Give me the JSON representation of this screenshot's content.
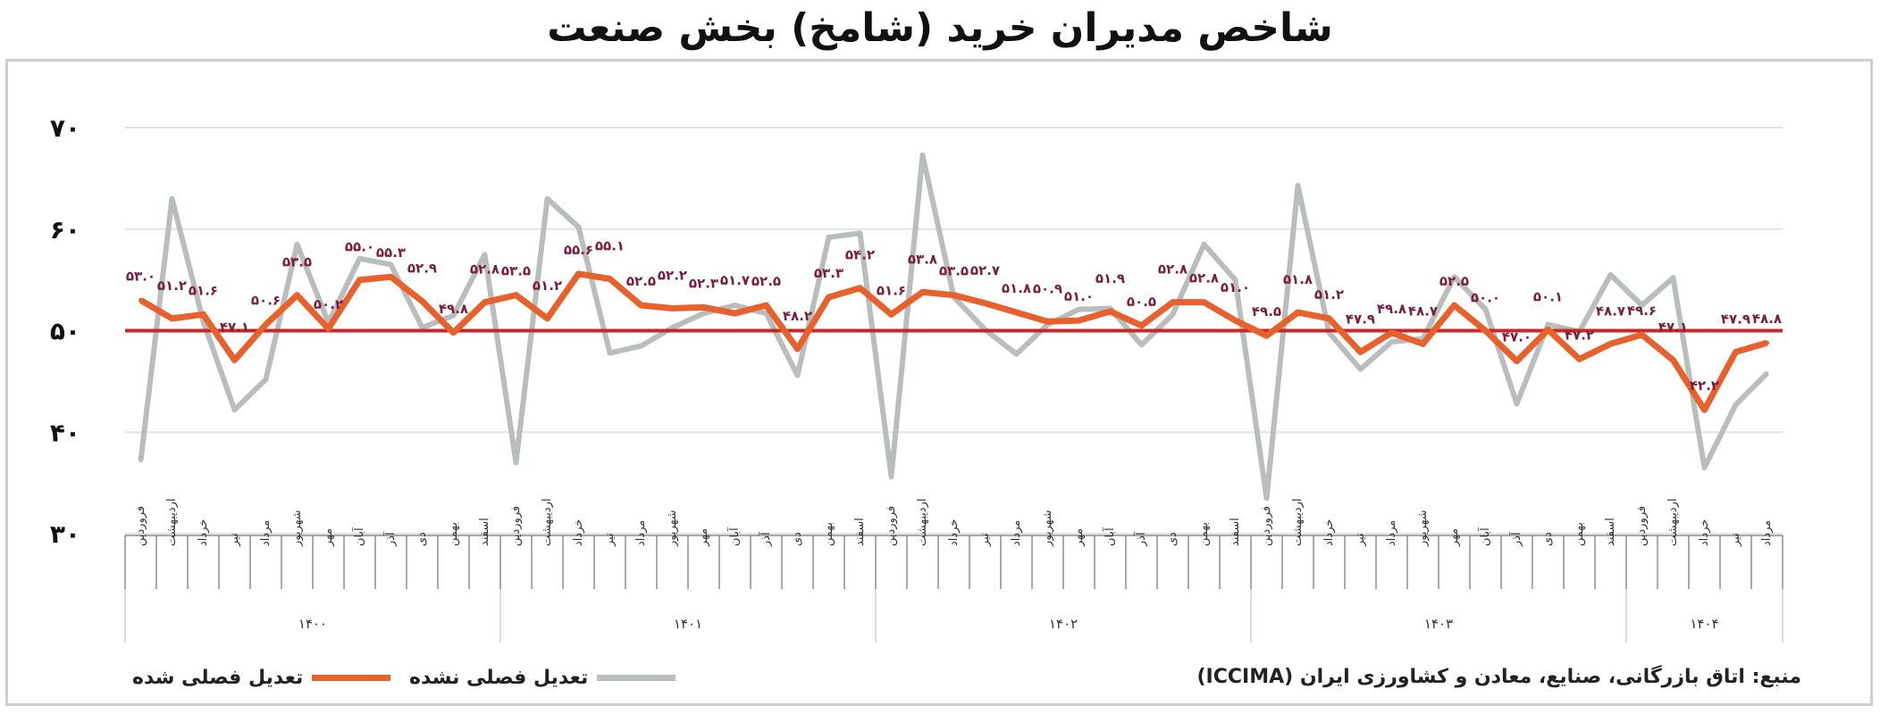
{
  "title": "شاخص مدیران خرید (شامخ) بخش صنعت",
  "source": "منبع: اتاق بازرگانی، صنایع، معادن و کشاورزی ایران (ICCIMA)",
  "colors": {
    "adjusted": "#e8612c",
    "unadjusted": "#b9bdbd",
    "reference": "#c62828",
    "label_adjusted": "#7b1f3f",
    "label_unadjusted": "#a7abab",
    "grid": "#e3e3e3"
  },
  "chart_data": {
    "type": "line",
    "title": "شاخص مدیران خرید (شامخ) بخش صنعت",
    "ylim": [
      30,
      70
    ],
    "y_ticks": [
      "۳۰",
      "۴۰",
      "۵۰",
      "۶۰",
      "۷۰"
    ],
    "y_tick_values": [
      30,
      40,
      50,
      60,
      70
    ],
    "reference_line": 50,
    "grid": true,
    "legend_position": "bottom-left",
    "months": [
      "فروردین",
      "اردیبهشت",
      "خرداد",
      "تیر",
      "مرداد",
      "شهریور",
      "مهر",
      "آبان",
      "آذر",
      "دی",
      "بهمن",
      "اسفند",
      "فروردین",
      "اردیبهشت",
      "خرداد",
      "تیر",
      "مرداد",
      "شهریور",
      "مهر",
      "آبان",
      "آذر",
      "دی",
      "بهمن",
      "اسفند",
      "فروردین",
      "اردیبهشت",
      "خرداد",
      "تیر",
      "مرداد",
      "شهریور",
      "مهر",
      "آبان",
      "آذر",
      "دی",
      "بهمن",
      "اسفند",
      "فروردین",
      "اردیبهشت",
      "خرداد",
      "تیر",
      "مرداد",
      "شهریور",
      "مهر",
      "آبان",
      "آذر",
      "دی",
      "بهمن",
      "اسفند",
      "فروردین",
      "اردیبهشت",
      "خرداد",
      "تیر",
      "مرداد"
    ],
    "years": [
      {
        "label": "۱۴۰۰",
        "months": 12
      },
      {
        "label": "۱۴۰۱",
        "months": 12
      },
      {
        "label": "۱۴۰۲",
        "months": 12
      },
      {
        "label": "۱۴۰۳",
        "months": 12
      },
      {
        "label": "۱۴۰۴",
        "months": 5
      }
    ],
    "series": [
      {
        "name": "تعدیل فصلی شده",
        "values": [
          53.0,
          51.2,
          51.6,
          47.1,
          50.6,
          53.5,
          50.2,
          55.0,
          55.3,
          52.9,
          49.8,
          52.8,
          53.5,
          51.2,
          55.6,
          55.1,
          52.5,
          52.2,
          52.3,
          51.7,
          52.5,
          48.2,
          53.3,
          54.2,
          51.6,
          53.8,
          53.5,
          52.7,
          51.8,
          50.9,
          51.0,
          51.9,
          50.5,
          52.8,
          52.8,
          51.0,
          49.5,
          51.8,
          51.2,
          47.9,
          49.8,
          48.7,
          52.5,
          50.0,
          47.0,
          50.1,
          47.2,
          48.7,
          49.6,
          47.1,
          42.2,
          47.9,
          48.8
        ],
        "labels": [
          "۵۳.۰",
          "۵۱.۲",
          "۵۱.۶",
          "۴۷.۱",
          "۵۰.۶",
          "۵۳.۵",
          "۵۰.۲",
          "۵۵.۰",
          "۵۵.۳",
          "۵۲.۹",
          "۴۹.۸",
          "۵۲.۸",
          "۵۳.۵",
          "۵۱.۲",
          "۵۵.۶",
          "۵۵.۱",
          "۵۲.۵",
          "۵۲.۲",
          "۵۲.۳",
          "۵۱.۷",
          "۵۲.۵",
          "۴۸.۲",
          "۵۳.۳",
          "۵۴.۲",
          "۵۱.۶",
          "۵۳.۸",
          "۵۳.۵",
          "۵۲.۷",
          "۵۱.۸",
          "۵۰.۹",
          "۵۱.۰",
          "۵۱.۹",
          "۵۰.۵",
          "۵۲.۸",
          "۵۲.۸",
          "۵۱.۰",
          "۴۹.۵",
          "۵۱.۸",
          "۵۱.۲",
          "۴۷.۹",
          "۴۹.۸",
          "۴۸.۷",
          "۵۲.۵",
          "۵۰.۰",
          "۴۷.۰",
          "۵۰.۱",
          "۴۷.۲",
          "۴۸.۷",
          "۴۹.۶",
          "۴۷.۱",
          "۴۲.۲",
          "۴۷.۹",
          "۴۸.۸"
        ]
      },
      {
        "name": "تعدیل فصلی نشده",
        "values": [
          37.2,
          63.0,
          50.9,
          42.2,
          45.2,
          58.5,
          50.8,
          57.1,
          56.5,
          50.3,
          51.5,
          57.5,
          37.0,
          63.0,
          60.2,
          47.8,
          48.5,
          50.3,
          51.7,
          52.5,
          51.7,
          45.6,
          59.2,
          59.6,
          35.6,
          67.3,
          53.3,
          50.1,
          47.7,
          50.6,
          52.1,
          52.2,
          48.6,
          51.6,
          58.5,
          55.0,
          33.5,
          64.3,
          49.8,
          46.2,
          48.9,
          49.2,
          55.3,
          52.1,
          42.8,
          50.6,
          49.9,
          55.5,
          52.5,
          55.2,
          36.5,
          42.7,
          45.8
        ]
      }
    ]
  }
}
